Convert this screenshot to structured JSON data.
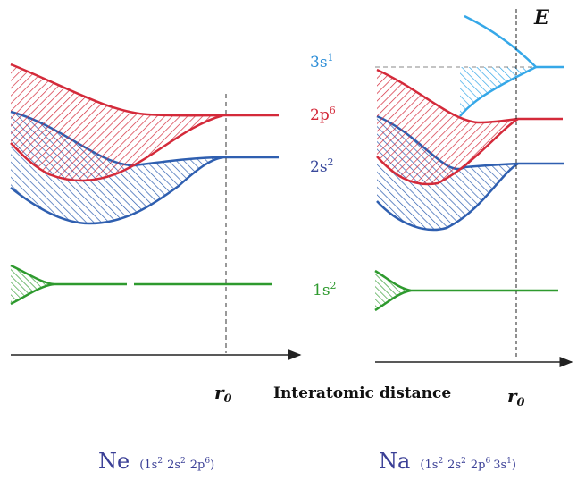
{
  "diagram": {
    "energy_label": "E",
    "x_axis_label": "Interatomic distance",
    "r0_label": "r",
    "r0_sub": "0",
    "levels": [
      {
        "id": "3s",
        "orbital": "3s",
        "occupancy": "1",
        "color": "#2f8fd8"
      },
      {
        "id": "2p",
        "orbital": "2p",
        "occupancy": "6",
        "color": "#d42a3a"
      },
      {
        "id": "2s",
        "orbital": "2s",
        "occupancy": "2",
        "color": "#3a4a9c"
      },
      {
        "id": "1s",
        "orbital": "1s",
        "occupancy": "2",
        "color": "#2e9a2e"
      }
    ],
    "panels": [
      {
        "id": "ne",
        "element": "Ne",
        "configuration": [
          {
            "orbital": "1s",
            "occupancy": "2"
          },
          {
            "orbital": "2s",
            "occupancy": "2"
          },
          {
            "orbital": "2p",
            "occupancy": "6"
          }
        ]
      },
      {
        "id": "na",
        "element": "Na",
        "configuration": [
          {
            "orbital": "1s",
            "occupancy": "2"
          },
          {
            "orbital": "2s",
            "occupancy": "2"
          },
          {
            "orbital": "2p",
            "occupancy": "6"
          },
          {
            "orbital": "3s",
            "occupancy": "1"
          }
        ]
      }
    ],
    "colors": {
      "red": "#d42a3a",
      "blue": "#2f5fb0",
      "light_blue": "#36a8e8",
      "green": "#2e9a2e",
      "label_navy": "#3a3f96",
      "axis": "#222222"
    }
  }
}
